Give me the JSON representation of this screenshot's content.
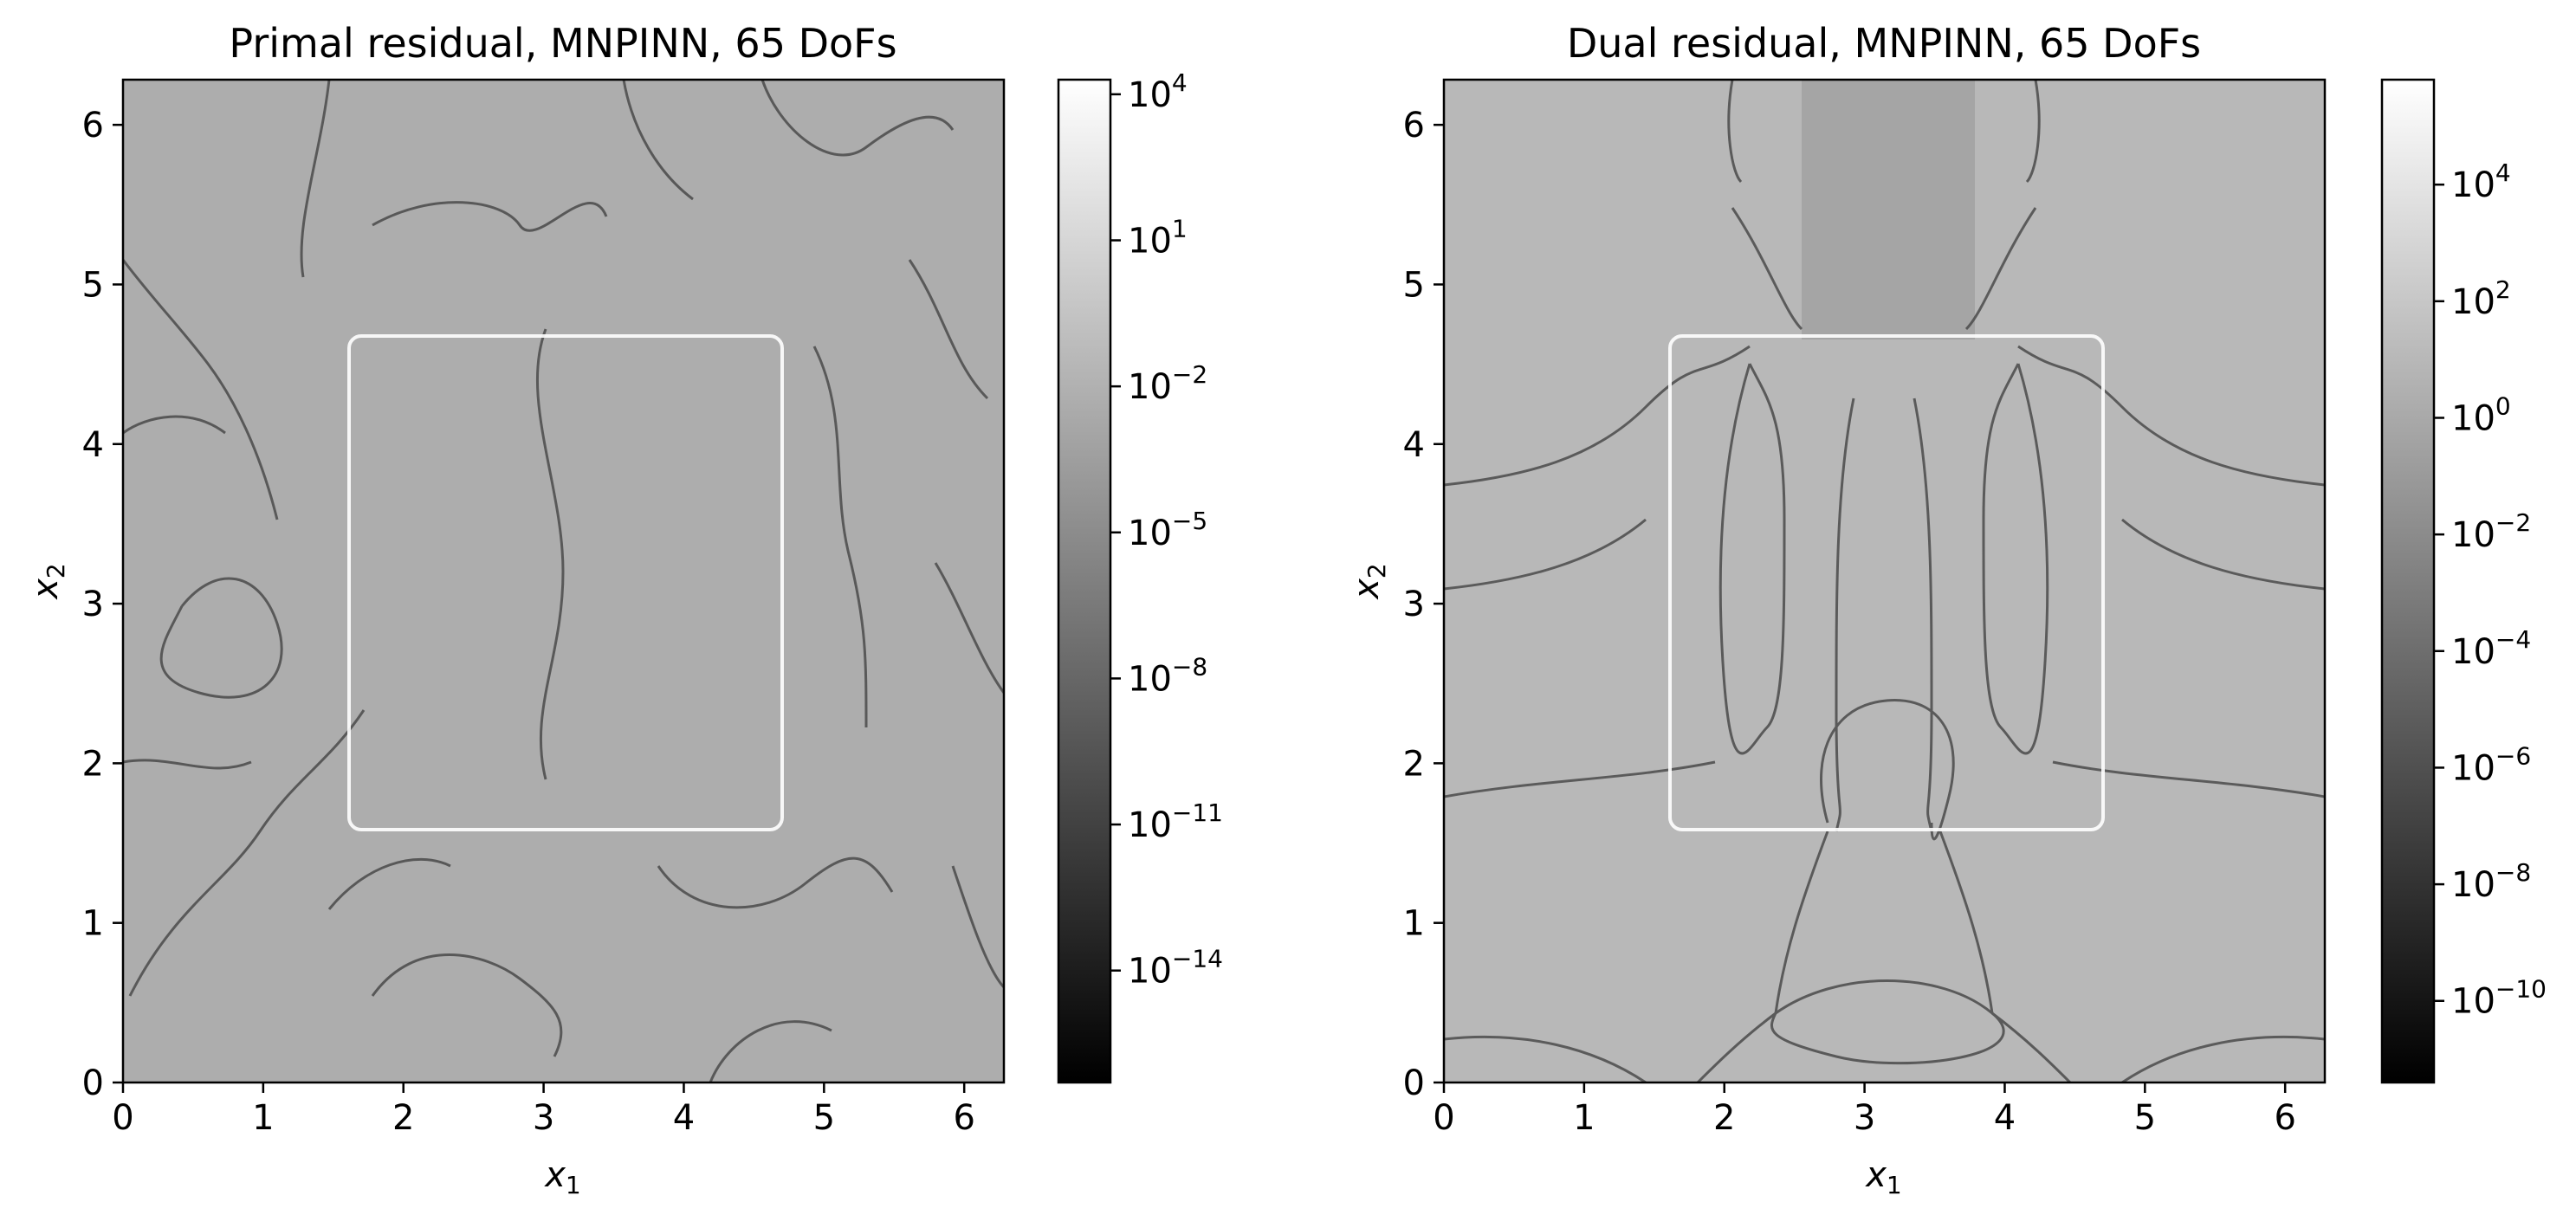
{
  "chart_data": [
    {
      "type": "heatmap",
      "title": "Primal residual, MNPINN, 65 DoFs",
      "xlabel": {
        "base": "x",
        "sub": "1"
      },
      "ylabel": {
        "base": "x",
        "sub": "2"
      },
      "xlim": [
        0,
        6.283
      ],
      "ylim": [
        0,
        6.283
      ],
      "xticks": [
        0,
        1,
        2,
        3,
        4,
        5,
        6
      ],
      "yticks": [
        0,
        1,
        2,
        3,
        4,
        5,
        6
      ],
      "colorscale": "gray",
      "log_scale": true,
      "colorbar": {
        "range_exp": [
          -16.3,
          4.3
        ],
        "ticks": [
          {
            "base": "10",
            "exp": "4"
          },
          {
            "base": "10",
            "exp": "1"
          },
          {
            "base": "10",
            "exp": "−2"
          },
          {
            "base": "10",
            "exp": "−5"
          },
          {
            "base": "10",
            "exp": "−8"
          },
          {
            "base": "10",
            "exp": "−11"
          },
          {
            "base": "10",
            "exp": "−14"
          }
        ],
        "tick_exps": [
          4,
          1,
          -2,
          -5,
          -8,
          -11,
          -14
        ]
      },
      "inner_box": {
        "x": [
          1.6,
          4.68
        ],
        "y": [
          1.6,
          4.68
        ]
      }
    },
    {
      "type": "heatmap",
      "title": "Dual residual, MNPINN, 65 DoFs",
      "xlabel": {
        "base": "x",
        "sub": "1"
      },
      "ylabel": {
        "base": "x",
        "sub": "2"
      },
      "xlim": [
        0,
        6.283
      ],
      "ylim": [
        0,
        6.283
      ],
      "xticks": [
        0,
        1,
        2,
        3,
        4,
        5,
        6
      ],
      "yticks": [
        0,
        1,
        2,
        3,
        4,
        5,
        6
      ],
      "colorscale": "gray",
      "log_scale": true,
      "colorbar": {
        "range_exp": [
          -11.4,
          5.8
        ],
        "ticks": [
          {
            "base": "10",
            "exp": "4"
          },
          {
            "base": "10",
            "exp": "2"
          },
          {
            "base": "10",
            "exp": "0"
          },
          {
            "base": "10",
            "exp": "−2"
          },
          {
            "base": "10",
            "exp": "−4"
          },
          {
            "base": "10",
            "exp": "−6"
          },
          {
            "base": "10",
            "exp": "−8"
          },
          {
            "base": "10",
            "exp": "−10"
          }
        ],
        "tick_exps": [
          4,
          2,
          0,
          -2,
          -4,
          -6,
          -8,
          -10
        ]
      },
      "inner_box": {
        "x": [
          1.6,
          4.68
        ],
        "y": [
          1.6,
          4.68
        ]
      }
    }
  ]
}
